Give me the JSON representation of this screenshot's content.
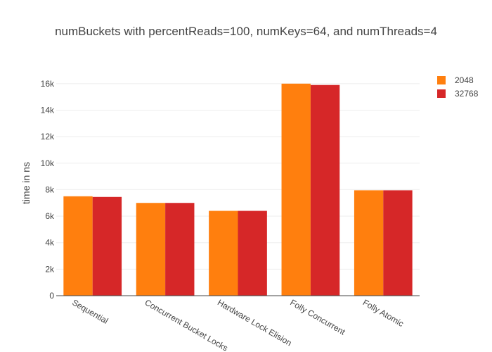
{
  "chart_data": {
    "type": "bar",
    "title": "numBuckets with percentReads=100, numKeys=64, and numThreads=4",
    "xlabel": "",
    "ylabel": "time in ns",
    "categories": [
      "Sequential",
      "Concurrent Bucket Locks",
      "Hardware Lock Elision",
      "Folly Concurrent",
      "Folly Atomic"
    ],
    "series": [
      {
        "name": "2048",
        "color": "#ff7f0e",
        "values": [
          7500,
          7000,
          6400,
          16000,
          7950
        ]
      },
      {
        "name": "32768",
        "color": "#d62728",
        "values": [
          7450,
          7000,
          6400,
          15900,
          7950
        ]
      }
    ],
    "ylim": [
      0,
      17000
    ],
    "yticks": [
      0,
      2000,
      4000,
      6000,
      8000,
      10000,
      12000,
      14000,
      16000
    ],
    "ytick_labels": [
      "0",
      "2k",
      "4k",
      "6k",
      "8k",
      "10k",
      "12k",
      "14k",
      "16k"
    ],
    "grid": true,
    "legend_position": "top-right"
  }
}
